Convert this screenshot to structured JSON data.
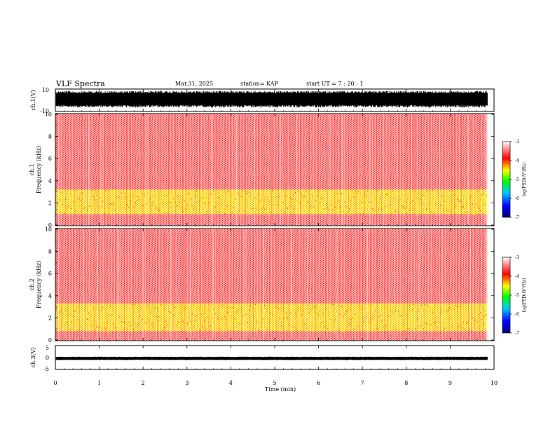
{
  "header": {
    "title": "VLF Spectra",
    "date": "Mar.31, 2025",
    "station": "station= KAP",
    "start": "start  UT =   7 : 20 : 1"
  },
  "chart_data": {
    "type": "heatmap",
    "xlabel": "Time (min)",
    "xlim": [
      0,
      10
    ],
    "xticks": [
      "0",
      "1",
      "2",
      "3",
      "4",
      "5",
      "6",
      "7",
      "8",
      "9",
      "10"
    ],
    "data_end_min": 9.85,
    "panels": [
      {
        "id": "ch1-waveform",
        "type": "line",
        "ylabel": "ch.1(V)",
        "ylim": [
          -10,
          10
        ],
        "yticks": [
          "10",
          "-10"
        ],
        "envelope_typical": [
          -7,
          9
        ],
        "color": "#000000"
      },
      {
        "id": "ch1-spectrogram",
        "type": "heatmap",
        "ylabel_top": "ch.1",
        "ylabel": "Frequency (kHz)",
        "ylim": [
          0,
          10
        ],
        "yticks": [
          "0",
          "2",
          "4",
          "6",
          "8",
          "10"
        ],
        "bands": [
          {
            "from_khz": 0,
            "to_khz": 1.0,
            "level": -3.2
          },
          {
            "from_khz": 1.0,
            "to_khz": 3.2,
            "level": -4.1
          },
          {
            "from_khz": 3.2,
            "to_khz": 3.8,
            "level": -3.6
          },
          {
            "from_khz": 3.8,
            "to_khz": 10,
            "level": -3.3
          }
        ]
      },
      {
        "id": "ch2-spectrogram",
        "type": "heatmap",
        "ylabel_top": "ch.2",
        "ylabel": "Frequency (kHz)",
        "ylim": [
          0,
          10
        ],
        "yticks": [
          "0",
          "2",
          "4",
          "6",
          "8",
          "10"
        ],
        "bands": [
          {
            "from_khz": 0,
            "to_khz": 0.8,
            "level": -3.2
          },
          {
            "from_khz": 0.8,
            "to_khz": 3.3,
            "level": -4.4
          },
          {
            "from_khz": 3.3,
            "to_khz": 4.0,
            "level": -3.7
          },
          {
            "from_khz": 4.0,
            "to_khz": 10,
            "level": -3.3
          }
        ]
      },
      {
        "id": "ch3-waveform",
        "type": "line",
        "ylabel": "ch.3(V)",
        "ylim": [
          -5,
          5
        ],
        "yticks": [
          "5",
          "0",
          "-5"
        ],
        "envelope_typical": [
          -1.2,
          0.4
        ],
        "color": "#000000"
      }
    ],
    "colorbar": {
      "label": "log(PSD)(V²/Hz)",
      "range": [
        -7,
        -3
      ],
      "ticks": [
        "-3",
        "-4",
        "-5",
        "-6",
        "-7"
      ],
      "colors": [
        "#000080",
        "#0000ff",
        "#00c8ff",
        "#00ff00",
        "#ffff00",
        "#ff0000",
        "#ffffff"
      ]
    }
  }
}
